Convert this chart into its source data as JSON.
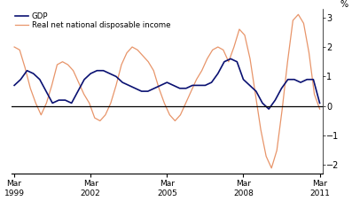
{
  "ylabel_right": "%",
  "ylim": [
    -2.3,
    3.3
  ],
  "yticks": [
    -2,
    -1,
    0,
    1,
    2,
    3
  ],
  "x_tick_labels": [
    "Mar\n1999",
    "Mar\n2002",
    "Mar\n2005",
    "Mar\n2008",
    "Mar\n2011"
  ],
  "x_tick_positions": [
    0,
    12,
    24,
    36,
    48
  ],
  "gdp_color": "#0a1172",
  "rndi_color": "#e8956a",
  "legend_gdp": "GDP",
  "legend_rndi": "Real net national disposable income",
  "gdp": [
    0.7,
    0.9,
    1.2,
    1.1,
    0.9,
    0.5,
    0.1,
    0.2,
    0.2,
    0.1,
    0.5,
    0.9,
    1.1,
    1.2,
    1.2,
    1.1,
    1.0,
    0.8,
    0.7,
    0.6,
    0.5,
    0.5,
    0.6,
    0.7,
    0.8,
    0.7,
    0.6,
    0.6,
    0.7,
    0.7,
    0.7,
    0.8,
    1.1,
    1.5,
    1.6,
    1.5,
    0.9,
    0.7,
    0.5,
    0.1,
    -0.1,
    0.2,
    0.6,
    0.9,
    0.9,
    0.8,
    0.9,
    0.9,
    0.1
  ],
  "rndi": [
    2.0,
    1.9,
    1.3,
    0.6,
    0.1,
    -0.3,
    0.1,
    0.7,
    1.4,
    1.5,
    1.4,
    1.2,
    0.8,
    0.4,
    0.1,
    -0.4,
    -0.5,
    -0.3,
    0.1,
    0.7,
    1.4,
    1.8,
    2.0,
    1.9,
    1.7,
    1.5,
    1.2,
    0.6,
    0.1,
    -0.3,
    -0.5,
    -0.3,
    0.1,
    0.5,
    0.9,
    1.2,
    1.6,
    1.9,
    2.0,
    1.9,
    1.5,
    2.0,
    2.6,
    2.4,
    1.6,
    0.4,
    -0.8,
    -1.7,
    -2.1,
    -1.5,
    -0.1,
    1.5,
    2.9,
    3.1,
    2.8,
    1.8,
    0.4,
    -0.1
  ]
}
